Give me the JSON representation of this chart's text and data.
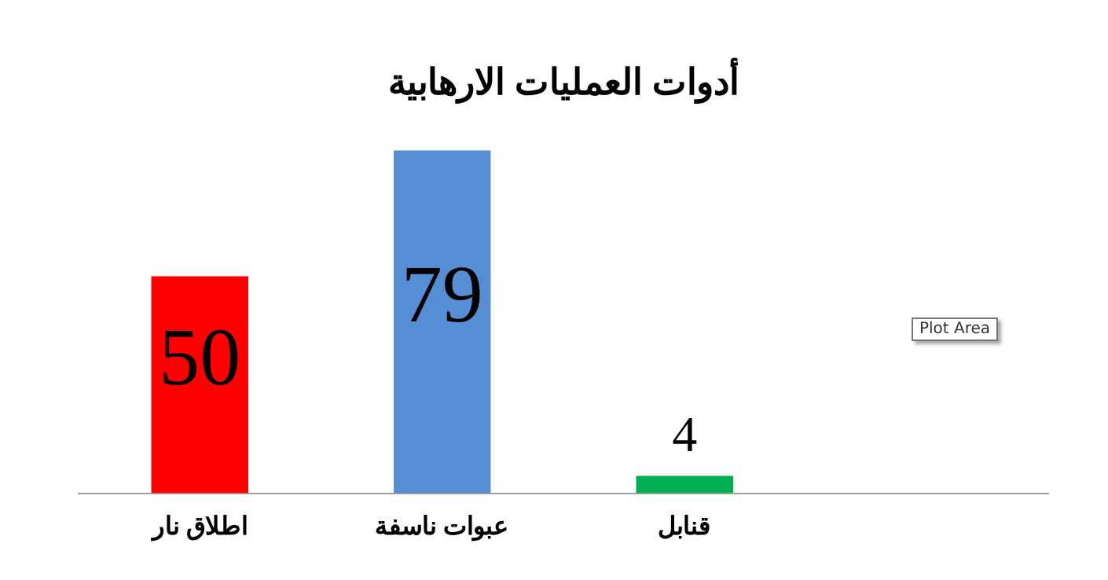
{
  "chart_data": {
    "type": "bar",
    "title": "أدوات العمليات الارهابية",
    "categories": [
      "اطلاق نار",
      "عبوات ناسفة",
      "قنابل",
      null
    ],
    "values": [
      50,
      79,
      4,
      null
    ],
    "colors": [
      "#ff0000",
      "#558ed5",
      "#00b050",
      null
    ],
    "data_labels": true,
    "grid": false,
    "legend": false,
    "annotations": [
      "Plot Area"
    ]
  }
}
